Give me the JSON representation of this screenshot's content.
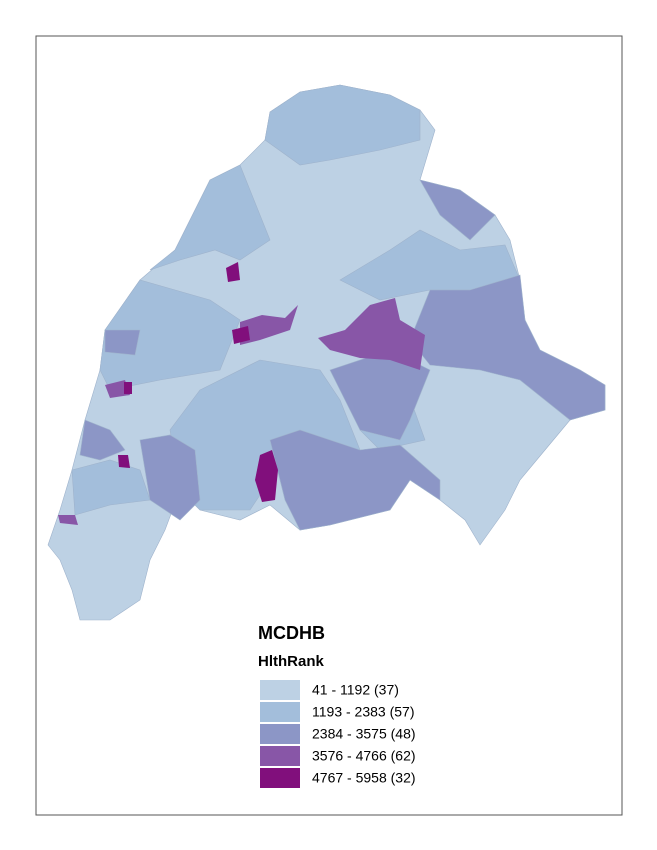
{
  "legend": {
    "title": "MCDHB",
    "field": "HlthRank",
    "classes": [
      {
        "label": "41 - 1192 (37)",
        "color": "#bdd1e4"
      },
      {
        "label": "1193 - 2383 (57)",
        "color": "#a3bedb"
      },
      {
        "label": "2384 - 3575 (48)",
        "color": "#8c96c6"
      },
      {
        "label": "3576 - 4766 (62)",
        "color": "#8856a7"
      },
      {
        "label": "4767 - 5958 (32)",
        "color": "#810f7c"
      }
    ]
  }
}
